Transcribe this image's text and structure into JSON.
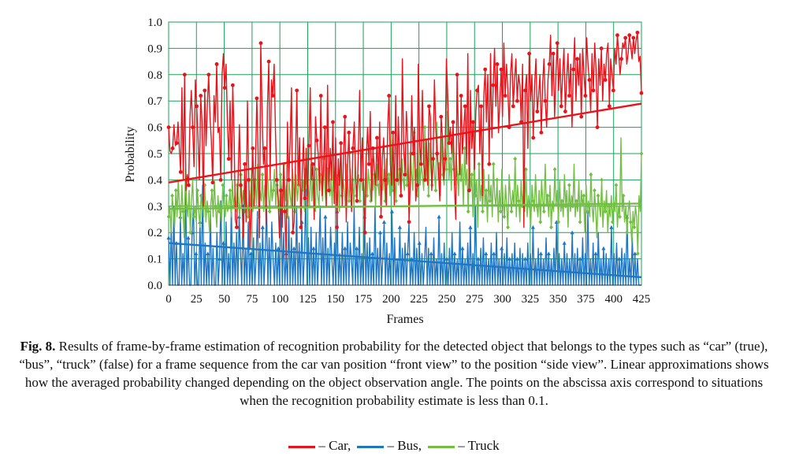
{
  "chart_data": {
    "type": "line",
    "xlabel": "Frames",
    "ylabel": "Probability",
    "xlim": [
      0,
      425
    ],
    "ylim": [
      0,
      1.0
    ],
    "x_ticks": [
      "0",
      "25",
      "50",
      "75",
      "100",
      "125",
      "150",
      "175",
      "200",
      "225",
      "250",
      "275",
      "300",
      "325",
      "350",
      "375",
      "400",
      "425"
    ],
    "y_ticks": [
      "0.0",
      "0.1",
      "0.2",
      "0.3",
      "0.4",
      "0.5",
      "0.6",
      "0.7",
      "0.8",
      "0.9",
      "1.0"
    ],
    "grid": true,
    "colors": {
      "car": "#e8131b",
      "bus": "#1f77c4",
      "truck": "#72bf44",
      "grid": "#1aa05a"
    },
    "series": [
      {
        "key": "car",
        "values": [
          0.6,
          0.51,
          0.5,
          0.52,
          0.61,
          0.53,
          0.54,
          0.62,
          0.52,
          0.43,
          0.75,
          0.4,
          0.8,
          0.36,
          0.42,
          0.38,
          0.64,
          0.74,
          0.6,
          0.45,
          0.78,
          0.68,
          0.56,
          0.4,
          0.72,
          0.62,
          0.3,
          0.74,
          0.53,
          0.69,
          0.8,
          0.64,
          0.55,
          0.39,
          0.72,
          0.62,
          0.84,
          0.58,
          0.6,
          0.4,
          0.8,
          0.88,
          0.75,
          0.84,
          0.62,
          0.48,
          0.7,
          0.4,
          0.76,
          0.56,
          0.25,
          0.22,
          0.4,
          0.61,
          0.38,
          0.3,
          0.18,
          0.46,
          0.24,
          0.7,
          0.4,
          0.14,
          0.33,
          0.52,
          0.3,
          0.46,
          0.71,
          0.5,
          0.18,
          0.92,
          0.66,
          0.46,
          0.52,
          0.23,
          0.68,
          0.85,
          0.4,
          0.78,
          0.72,
          0.84,
          0.58,
          0.4,
          0.32,
          0.18,
          0.36,
          0.22,
          0.46,
          0.28,
          0.1,
          0.62,
          0.4,
          0.55,
          0.75,
          0.2,
          0.24,
          0.48,
          0.74,
          0.38,
          0.56,
          0.22,
          0.42,
          0.56,
          0.33,
          0.52,
          0.3,
          0.53,
          0.75,
          0.4,
          0.46,
          0.25,
          0.64,
          0.55,
          0.5,
          0.36,
          0.72,
          0.34,
          0.45,
          0.6,
          0.3,
          0.76,
          0.36,
          0.52,
          0.4,
          0.62,
          0.31,
          0.56,
          0.22,
          0.48,
          0.38,
          0.54,
          0.3,
          0.5,
          0.64,
          0.24,
          0.46,
          0.58,
          0.38,
          0.28,
          0.52,
          0.62,
          0.42,
          0.32,
          0.5,
          0.74,
          0.4,
          0.56,
          0.36,
          0.2,
          0.48,
          0.6,
          0.46,
          0.66,
          0.32,
          0.52,
          0.44,
          0.38,
          0.56,
          0.4,
          0.62,
          0.26,
          0.48,
          0.56,
          0.4,
          0.3,
          0.6,
          0.72,
          0.46,
          0.38,
          0.58,
          0.3,
          0.72,
          0.4,
          0.64,
          0.46,
          0.34,
          0.86,
          0.52,
          0.42,
          0.66,
          0.54,
          0.24,
          0.4,
          0.72,
          0.5,
          0.6,
          0.32,
          0.38,
          0.84,
          0.54,
          0.46,
          0.74,
          0.46,
          0.4,
          0.55,
          0.38,
          0.68,
          0.64,
          0.36,
          0.48,
          0.78,
          0.6,
          0.5,
          0.44,
          0.32,
          0.64,
          0.56,
          0.4,
          0.48,
          0.86,
          0.72,
          0.54,
          0.6,
          0.5,
          0.62,
          0.38,
          0.25,
          0.8,
          0.56,
          0.42,
          0.72,
          0.5,
          0.6,
          0.68,
          0.46,
          0.88,
          0.36,
          0.74,
          0.52,
          0.62,
          0.44,
          0.66,
          0.74,
          0.76,
          0.5,
          0.68,
          0.34,
          0.72,
          0.82,
          0.62,
          0.8,
          0.46,
          0.88,
          0.56,
          0.76,
          0.9,
          0.68,
          0.84,
          0.58,
          0.7,
          0.82,
          0.64,
          0.92,
          0.72,
          0.84,
          0.74,
          0.6,
          0.8,
          0.88,
          0.68,
          0.78,
          0.86,
          0.7,
          0.8,
          0.76,
          0.62,
          0.84,
          0.22,
          0.74,
          0.8,
          0.52,
          0.88,
          0.7,
          0.8,
          0.56,
          0.76,
          0.86,
          0.66,
          0.72,
          0.8,
          0.58,
          0.76,
          0.86,
          0.7,
          0.6,
          0.78,
          0.84,
          0.95,
          0.72,
          0.88,
          0.64,
          0.8,
          0.92,
          0.74,
          0.86,
          0.68,
          0.8,
          0.9,
          0.66,
          0.78,
          0.88,
          0.72,
          0.84,
          0.6,
          0.82,
          0.94,
          0.7,
          0.86,
          0.76,
          0.88,
          0.64,
          0.9,
          0.8,
          0.72,
          0.94,
          0.84,
          0.78,
          0.66,
          0.88,
          0.74,
          0.92,
          0.82,
          0.6,
          0.86,
          0.76,
          0.9,
          0.7,
          0.84,
          0.78,
          0.88,
          0.92,
          0.68,
          0.86,
          0.8,
          0.74,
          0.9,
          0.84,
          0.95,
          0.88,
          0.8,
          0.86,
          0.92,
          0.9,
          0.94,
          0.84,
          0.88,
          0.95,
          0.91,
          0.86,
          0.94,
          0.88,
          0.93,
          0.96,
          0.85,
          0.87,
          0.73
        ],
        "trend": [
          0.39,
          0.69
        ]
      },
      {
        "key": "bus",
        "values": [
          0.18,
          0.0,
          0.22,
          0.0,
          0.3,
          0.0,
          0.16,
          0.0,
          0.0,
          0.26,
          0.0,
          0.12,
          0.0,
          0.38,
          0.0,
          0.18,
          0.0,
          0.0,
          0.2,
          0.3,
          0.0,
          0.12,
          0.0,
          0.0,
          0.24,
          0.0,
          0.38,
          0.0,
          0.16,
          0.0,
          0.12,
          0.0,
          0.28,
          0.0,
          0.14,
          0.0,
          0.0,
          0.2,
          0.0,
          0.1,
          0.32,
          0.0,
          0.16,
          0.0,
          0.24,
          0.0,
          0.12,
          0.0,
          0.3,
          0.0,
          0.16,
          0.0,
          0.2,
          0.0,
          0.26,
          0.12,
          0.0,
          0.3,
          0.0,
          0.14,
          0.0,
          0.24,
          0.0,
          0.12,
          0.0,
          0.18,
          0.0,
          0.1,
          0.28,
          0.0,
          0.16,
          0.0,
          0.22,
          0.0,
          0.12,
          0.3,
          0.0,
          0.18,
          0.0,
          0.24,
          0.1,
          0.0,
          0.16,
          0.0,
          0.14,
          0.0,
          0.38,
          0.0,
          0.2,
          0.0,
          0.12,
          0.0,
          0.26,
          0.0,
          0.18,
          0.0,
          0.14,
          0.0,
          0.3,
          0.0,
          0.16,
          0.0,
          0.24,
          0.0,
          0.12,
          0.36,
          0.0,
          0.18,
          0.0,
          0.22,
          0.0,
          0.14,
          0.0,
          0.2,
          0.0,
          0.12,
          0.3,
          0.0,
          0.18,
          0.0,
          0.26,
          0.0,
          0.14,
          0.0,
          0.22,
          0.1,
          0.0,
          0.16,
          0.0,
          0.28,
          0.0,
          0.12,
          0.0,
          0.2,
          0.0,
          0.14,
          0.0,
          0.24,
          0.0,
          0.16,
          0.1,
          0.0,
          0.3,
          0.0,
          0.14,
          0.0,
          0.22,
          0.0,
          0.12,
          0.0,
          0.26,
          0.0,
          0.16,
          0.0,
          0.18,
          0.0,
          0.12,
          0.0,
          0.3,
          0.0,
          0.14,
          0.0,
          0.2,
          0.0,
          0.1,
          0.24,
          0.0,
          0.16,
          0.0,
          0.12,
          0.0,
          0.28,
          0.0,
          0.18,
          0.0,
          0.1,
          0.0,
          0.22,
          0.0,
          0.14,
          0.0,
          0.16,
          0.0,
          0.12,
          0.24,
          0.0,
          0.1,
          0.0,
          0.2,
          0.0,
          0.14,
          0.0,
          0.16,
          0.0,
          0.12,
          0.0,
          0.1,
          0.22,
          0.0,
          0.14,
          0.0,
          0.12,
          0.0,
          0.18,
          0.0,
          0.1,
          0.0,
          0.26,
          0.0,
          0.12,
          0.0,
          0.16,
          0.0,
          0.1,
          0.0,
          0.14,
          0.0,
          0.2,
          0.0,
          0.12,
          0.0,
          0.1,
          0.0,
          0.24,
          0.0,
          0.14,
          0.0,
          0.1,
          0.0,
          0.16,
          0.0,
          0.22,
          0.0,
          0.12,
          0.0,
          0.3,
          0.0,
          0.1,
          0.0,
          0.14,
          0.0,
          0.18,
          0.0,
          0.12,
          0.0,
          0.1,
          0.0,
          0.16,
          0.0,
          0.12,
          0.0,
          0.2,
          0.0,
          0.1,
          0.0,
          0.14,
          0.0,
          0.12,
          0.0,
          0.18,
          0.0,
          0.1,
          0.0,
          0.12,
          0.0,
          0.16,
          0.0,
          0.1,
          0.0,
          0.14,
          0.0,
          0.12,
          0.0,
          0.1,
          0.0,
          0.16,
          0.0,
          0.12,
          0.0,
          0.22,
          0.0,
          0.1,
          0.0,
          0.14,
          0.0,
          0.12,
          0.0,
          0.1,
          0.0,
          0.18,
          0.0,
          0.12,
          0.0,
          0.1,
          0.0,
          0.14,
          0.0,
          0.24,
          0.0,
          0.12,
          0.0,
          0.1,
          0.0,
          0.16,
          0.0,
          0.12,
          0.0,
          0.1,
          0.0,
          0.2,
          0.0,
          0.12,
          0.0,
          0.14,
          0.0,
          0.1,
          0.0,
          0.18,
          0.0,
          0.12,
          0.0,
          0.28,
          0.0,
          0.1,
          0.0,
          0.16,
          0.0,
          0.12,
          0.0,
          0.2,
          0.0,
          0.1,
          0.0,
          0.14,
          0.0,
          0.12,
          0.0,
          0.1,
          0.0,
          0.22,
          0.0,
          0.12,
          0.0,
          0.16,
          0.0,
          0.1,
          0.0,
          0.14,
          0.0,
          0.12,
          0.0,
          0.26,
          0.0,
          0.1,
          0.0,
          0.18,
          0.0,
          0.12,
          0.0,
          0.1,
          0.0,
          0.0,
          0.0
        ],
        "trend": [
          0.16,
          0.03
        ]
      },
      {
        "key": "truck",
        "values": [
          0.26,
          0.3,
          0.2,
          0.34,
          0.28,
          0.22,
          0.36,
          0.26,
          0.4,
          0.3,
          0.24,
          0.38,
          0.28,
          0.18,
          0.44,
          0.3,
          0.26,
          0.36,
          0.2,
          0.32,
          0.4,
          0.26,
          0.3,
          0.24,
          0.36,
          0.28,
          0.22,
          0.34,
          0.3,
          0.26,
          0.38,
          0.24,
          0.32,
          0.28,
          0.2,
          0.3,
          0.36,
          0.26,
          0.4,
          0.3,
          0.22,
          0.34,
          0.28,
          0.32,
          0.24,
          0.38,
          0.3,
          0.26,
          0.34,
          0.28,
          0.3,
          0.36,
          0.26,
          0.4,
          0.3,
          0.34,
          0.28,
          0.38,
          0.32,
          0.26,
          0.42,
          0.3,
          0.36,
          0.28,
          0.4,
          0.32,
          0.26,
          0.36,
          0.3,
          0.44,
          0.28,
          0.34,
          0.4,
          0.3,
          0.46,
          0.26,
          0.36,
          0.32,
          0.42,
          0.28,
          0.38,
          0.3,
          0.46,
          0.34,
          0.28,
          0.4,
          0.32,
          0.36,
          0.44,
          0.3,
          0.38,
          0.34,
          0.28,
          0.42,
          0.36,
          0.3,
          0.46,
          0.32,
          0.38,
          0.26,
          0.4,
          0.34,
          0.3,
          0.44,
          0.36,
          0.28,
          0.42,
          0.32,
          0.38,
          0.46,
          0.3,
          0.36,
          0.4,
          0.28,
          0.44,
          0.34,
          0.38,
          0.3,
          0.46,
          0.32,
          0.4,
          0.36,
          0.28,
          0.44,
          0.34,
          0.3,
          0.42,
          0.38,
          0.32,
          0.48,
          0.36,
          0.3,
          0.44,
          0.38,
          0.34,
          0.4,
          0.3,
          0.46,
          0.36,
          0.32,
          0.42,
          0.38,
          0.28,
          0.5,
          0.34,
          0.4,
          0.36,
          0.3,
          0.46,
          0.38,
          0.32,
          0.44,
          0.36,
          0.4,
          0.3,
          0.48,
          0.34,
          0.38,
          0.42,
          0.32,
          0.46,
          0.36,
          0.4,
          0.3,
          0.5,
          0.34,
          0.44,
          0.38,
          0.32,
          0.48,
          0.36,
          0.42,
          0.3,
          0.46,
          0.38,
          0.34,
          0.52,
          0.4,
          0.36,
          0.44,
          0.32,
          0.48,
          0.38,
          0.42,
          0.34,
          0.56,
          0.36,
          0.46,
          0.4,
          0.32,
          0.5,
          0.38,
          0.44,
          0.34,
          0.48,
          0.4,
          0.36,
          0.54,
          0.38,
          0.46,
          0.32,
          0.5,
          0.42,
          0.36,
          0.58,
          0.4,
          0.44,
          0.34,
          0.52,
          0.38,
          0.46,
          0.42,
          0.36,
          0.6,
          0.4,
          0.48,
          0.34,
          0.54,
          0.44,
          0.38,
          0.5,
          0.42,
          0.36,
          0.62,
          0.4,
          0.46,
          0.34,
          0.56,
          0.42,
          0.38,
          0.52,
          0.44,
          0.66,
          0.4,
          0.48,
          0.36,
          0.58,
          0.44,
          0.38,
          0.5,
          0.42,
          0.34,
          0.54,
          0.4,
          0.46,
          0.3,
          0.52,
          0.38,
          0.44,
          0.28,
          0.48,
          0.36,
          0.42,
          0.26,
          0.5,
          0.34,
          0.4,
          0.22,
          0.46,
          0.32,
          0.38,
          0.28,
          0.44,
          0.3,
          0.36,
          0.24,
          0.42,
          0.32,
          0.38,
          0.26,
          0.46,
          0.34,
          0.3,
          0.4,
          0.24,
          0.36,
          0.28,
          0.44,
          0.32,
          0.26,
          0.38,
          0.3,
          0.22,
          0.42,
          0.34,
          0.28,
          0.36,
          0.3,
          0.48,
          0.26,
          0.38,
          0.32,
          0.24,
          0.4,
          0.3,
          0.36,
          0.28,
          0.44,
          0.26,
          0.34,
          0.3,
          0.22,
          0.38,
          0.32,
          0.28,
          0.42,
          0.3,
          0.26,
          0.36,
          0.24,
          0.4,
          0.32,
          0.28,
          0.46,
          0.3,
          0.34,
          0.26,
          0.38,
          0.22,
          0.32,
          0.28,
          0.44,
          0.3,
          0.36,
          0.24,
          0.4,
          0.28,
          0.32,
          0.26,
          0.42,
          0.3,
          0.36,
          0.22,
          0.38,
          0.28,
          0.34,
          0.3,
          0.46,
          0.26,
          0.32,
          0.28,
          0.4,
          0.24,
          0.36,
          0.3,
          0.34,
          0.2,
          0.38,
          0.28,
          0.32,
          0.26,
          0.42,
          0.3,
          0.24,
          0.36,
          0.28,
          0.18,
          0.34,
          0.3,
          0.26,
          0.4,
          0.22,
          0.32,
          0.28,
          0.36,
          0.2,
          0.3,
          0.26,
          0.34,
          0.24,
          0.32,
          0.28,
          0.38,
          0.22,
          0.3,
          0.26,
          0.56,
          0.28,
          0.34,
          0.24,
          0.3,
          0.2,
          0.28,
          0.32,
          0.24,
          0.16,
          0.28,
          0.22,
          0.3,
          0.26,
          0.12,
          0.34,
          0.28,
          0.5
        ],
        "trend": [
          0.29,
          0.31
        ]
      }
    ]
  },
  "caption": {
    "fig_label": "Fig. 8.",
    "text": " Results of frame-by-frame estimation of recognition probability for the detected object that belongs to the types such as “car” (true), “bus”, “truck” (false) for a frame sequence from the car van position “front view” to the position “side view”. Linear approximations shows how the averaged probability changed depending on the object observation angle. The points on the abscissa axis correspond to situations when the recognition probability estimate is less than 0.1."
  },
  "legend": {
    "car_label": "– Car,",
    "bus_label": "– Bus,",
    "truck_label": "– Truck"
  }
}
